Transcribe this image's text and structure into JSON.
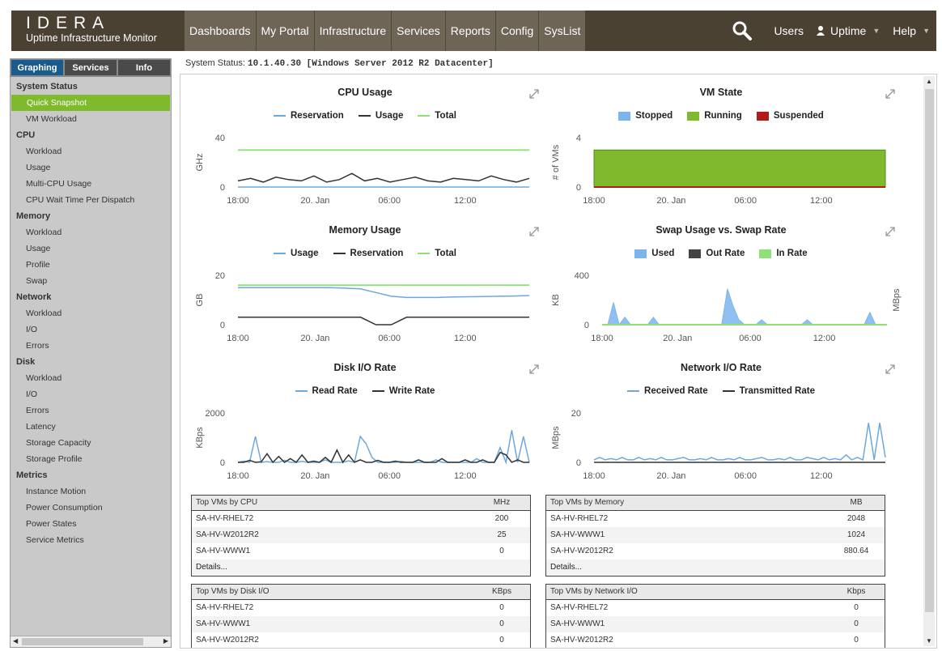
{
  "header": {
    "logo_word": "IDERA",
    "logo_sub": "Uptime Infrastructure Monitor",
    "nav": [
      "Dashboards",
      "My Portal",
      "Infrastructure",
      "Services",
      "Reports",
      "Config",
      "SysList"
    ],
    "users": "Users",
    "account": "Uptime",
    "help": "Help"
  },
  "sidebar": {
    "tabs": [
      "Graphing",
      "Services",
      "Info"
    ],
    "sections": [
      {
        "title": "System Status",
        "items": [
          "Quick Snapshot",
          "VM Workload"
        ]
      },
      {
        "title": "CPU",
        "items": [
          "Workload",
          "Usage",
          "Multi-CPU Usage",
          "CPU Wait Time Per Dispatch"
        ]
      },
      {
        "title": "Memory",
        "items": [
          "Workload",
          "Usage",
          "Profile",
          "Swap"
        ]
      },
      {
        "title": "Network",
        "items": [
          "Workload",
          "I/O",
          "Errors"
        ]
      },
      {
        "title": "Disk",
        "items": [
          "Workload",
          "I/O",
          "Errors",
          "Latency",
          "Storage Capacity",
          "Storage Profile"
        ]
      },
      {
        "title": "Metrics",
        "items": [
          "Instance Motion",
          "Power Consumption",
          "Power States",
          "Service Metrics"
        ]
      }
    ],
    "active_item": "Quick Snapshot"
  },
  "status": {
    "label": "System Status:",
    "value": "10.1.40.30 [Windows Server 2012 R2 Datacenter]"
  },
  "chart_data": [
    {
      "id": "cpu",
      "type": "line",
      "title": "CPU Usage",
      "ylabel": "GHz",
      "ylim": [
        0,
        40
      ],
      "yticks": [
        0,
        40
      ],
      "xticks": [
        "18:00",
        "20. Jan",
        "06:00",
        "12:00"
      ],
      "series": [
        {
          "name": "Reservation",
          "color": "#6fa8dc",
          "values": [
            0,
            0,
            0,
            0,
            0,
            0,
            0,
            0,
            0,
            0
          ]
        },
        {
          "name": "Usage",
          "color": "#333333",
          "values": [
            5,
            7,
            4,
            8,
            6,
            5,
            9,
            4,
            6,
            11,
            5,
            7,
            4,
            6,
            8,
            5,
            4,
            7,
            6,
            5,
            9,
            6,
            4,
            7
          ]
        },
        {
          "name": "Total",
          "color": "#90e07a",
          "values": [
            30,
            30,
            30,
            30,
            30,
            30,
            30,
            30,
            30,
            30
          ]
        }
      ]
    },
    {
      "id": "vm",
      "type": "area",
      "title": "VM State",
      "ylabel": "# of VMs",
      "ylim": [
        0,
        4
      ],
      "yticks": [
        0,
        4
      ],
      "xticks": [
        "18:00",
        "20. Jan",
        "06:00",
        "12:00"
      ],
      "series": [
        {
          "name": "Stopped",
          "color": "#7cb5ec",
          "values": [
            0,
            0,
            0,
            0,
            0,
            0,
            0,
            0,
            0,
            0
          ]
        },
        {
          "name": "Running",
          "color": "#7fba2c",
          "values": [
            3,
            3,
            3,
            3,
            3,
            3,
            3,
            3,
            3,
            3
          ]
        },
        {
          "name": "Suspended",
          "color": "#b01c1c",
          "values": [
            0,
            0,
            0,
            0,
            0,
            0,
            0,
            0,
            0,
            0
          ]
        }
      ]
    },
    {
      "id": "mem",
      "type": "line",
      "title": "Memory Usage",
      "ylabel": "GB",
      "ylim": [
        0,
        20
      ],
      "yticks": [
        0,
        20
      ],
      "xticks": [
        "18:00",
        "20. Jan",
        "06:00",
        "12:00"
      ],
      "series": [
        {
          "name": "Usage",
          "color": "#6fa8dc",
          "values": [
            15,
            15,
            15,
            15,
            15,
            15,
            15,
            14.8,
            14.5,
            13,
            11.5,
            11,
            11,
            11,
            11.2,
            11.3,
            11.4,
            11.5,
            11.6,
            11.8
          ]
        },
        {
          "name": "Reservation",
          "color": "#333333",
          "values": [
            3,
            3,
            3,
            3,
            3,
            3,
            3,
            3,
            3,
            0,
            0,
            3,
            3,
            3,
            3,
            3,
            3,
            3,
            3,
            3
          ]
        },
        {
          "name": "Total",
          "color": "#90e07a",
          "values": [
            16,
            16,
            16,
            16,
            16,
            16,
            16,
            16,
            16,
            16,
            16,
            16,
            16,
            16,
            16,
            16,
            16,
            16,
            16,
            16
          ]
        }
      ]
    },
    {
      "id": "swap",
      "type": "area",
      "title": "Swap Usage vs. Swap Rate",
      "ylabel": "KB",
      "y2label": "MBps",
      "ylim": [
        0,
        400
      ],
      "yticks": [
        0,
        400
      ],
      "xticks": [
        "18:00",
        "20. Jan",
        "06:00",
        "12:00"
      ],
      "series": [
        {
          "name": "Used",
          "color": "#7cb5ec",
          "values": [
            0,
            0,
            180,
            0,
            60,
            0,
            0,
            0,
            0,
            60,
            0,
            0,
            0,
            0,
            0,
            0,
            0,
            0,
            0,
            0,
            0,
            0,
            290,
            150,
            40,
            0,
            0,
            0,
            40,
            0,
            0,
            0,
            0,
            0,
            0,
            0,
            40,
            0,
            0,
            0,
            0,
            0,
            0,
            0,
            0,
            0,
            0,
            100,
            0,
            0,
            0
          ]
        },
        {
          "name": "Out Rate",
          "color": "#444444",
          "values": [
            0,
            0,
            0,
            0
          ]
        },
        {
          "name": "In Rate",
          "color": "#90e07a",
          "values": [
            0,
            0,
            0,
            0
          ]
        }
      ]
    },
    {
      "id": "disk",
      "type": "line",
      "title": "Disk I/O Rate",
      "ylabel": "KBps",
      "ylim": [
        0,
        2000
      ],
      "yticks": [
        0,
        2000
      ],
      "xticks": [
        "18:00",
        "20. Jan",
        "06:00",
        "12:00"
      ],
      "series": [
        {
          "name": "Read Rate",
          "color": "#6fa8dc",
          "values": [
            0,
            50,
            0,
            1050,
            0,
            30,
            0,
            0,
            80,
            0,
            0,
            40,
            0,
            0,
            0,
            100,
            0,
            0,
            0,
            60,
            0,
            1050,
            750,
            200,
            0,
            0,
            0,
            0,
            40,
            0,
            0,
            0,
            0,
            0,
            100,
            0,
            0,
            0,
            0,
            0,
            0,
            150,
            0,
            0,
            0,
            600,
            0,
            1300,
            0,
            1050,
            0
          ]
        },
        {
          "name": "Write Rate",
          "color": "#333333",
          "values": [
            0,
            0,
            80,
            0,
            20,
            350,
            0,
            240,
            0,
            150,
            0,
            300,
            0,
            50,
            0,
            200,
            0,
            500,
            0,
            300,
            0,
            100,
            0,
            0,
            80,
            0,
            0,
            50,
            0,
            0,
            0,
            100,
            0,
            0,
            0,
            150,
            0,
            0,
            0,
            100,
            0,
            0,
            100,
            0,
            0,
            400,
            300,
            0,
            100,
            0,
            0
          ]
        }
      ]
    },
    {
      "id": "net",
      "type": "line",
      "title": "Network I/O Rate",
      "ylabel": "MBps",
      "ylim": [
        0,
        20
      ],
      "yticks": [
        0,
        20
      ],
      "xticks": [
        "18:00",
        "20. Jan",
        "06:00",
        "12:00"
      ],
      "series": [
        {
          "name": "Received Rate",
          "color": "#6fa8dc",
          "values": [
            1,
            2,
            1,
            1.5,
            1,
            2,
            1,
            1,
            2,
            1,
            1.5,
            1,
            2,
            1,
            1,
            1.5,
            2,
            1,
            1,
            1.5,
            1,
            2,
            1,
            1,
            1.5,
            1,
            2,
            1,
            1,
            1.5,
            2,
            1,
            1,
            1.5,
            1,
            2,
            1,
            1,
            2,
            1.5,
            1,
            2,
            1,
            1.5,
            1,
            3,
            1,
            2,
            1,
            16,
            1,
            16,
            2
          ]
        },
        {
          "name": "Transmitted Rate",
          "color": "#333333",
          "values": [
            0,
            0,
            0,
            0,
            0
          ]
        }
      ]
    }
  ],
  "tables": [
    {
      "title": "Top VMs by CPU",
      "unit": "MHz",
      "rows": [
        [
          "SA-HV-RHEL72",
          "200"
        ],
        [
          "SA-HV-W2012R2",
          "25"
        ],
        [
          "SA-HV-WWW1",
          "0"
        ]
      ],
      "details": "Details..."
    },
    {
      "title": "Top VMs by Memory",
      "unit": "MB",
      "rows": [
        [
          "SA-HV-RHEL72",
          "2048"
        ],
        [
          "SA-HV-WWW1",
          "1024"
        ],
        [
          "SA-HV-W2012R2",
          "880.64"
        ]
      ],
      "details": "Details..."
    },
    {
      "title": "Top VMs by Disk I/O",
      "unit": "KBps",
      "rows": [
        [
          "SA-HV-RHEL72",
          "0"
        ],
        [
          "SA-HV-WWW1",
          "0"
        ],
        [
          "SA-HV-W2012R2",
          "0"
        ]
      ]
    },
    {
      "title": "Top VMs by Network I/O",
      "unit": "Kbps",
      "rows": [
        [
          "SA-HV-RHEL72",
          "0"
        ],
        [
          "SA-HV-WWW1",
          "0"
        ],
        [
          "SA-HV-W2012R2",
          "0"
        ]
      ]
    }
  ]
}
